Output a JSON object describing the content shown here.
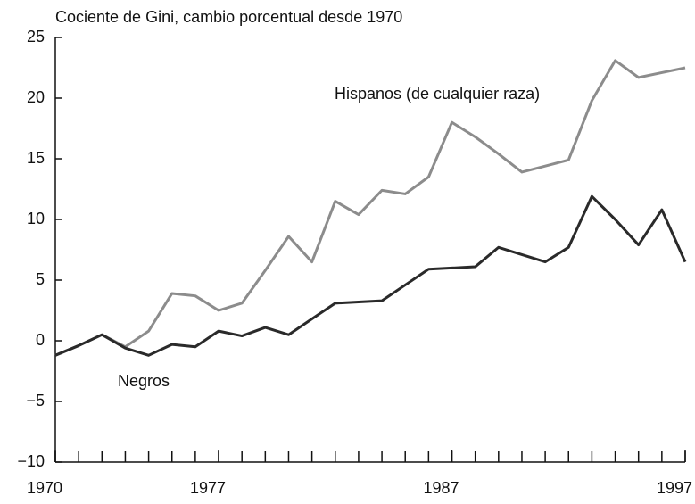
{
  "chart_data": {
    "type": "line",
    "title": "Cociente de Gini, cambio porcentual desde 1970",
    "x": [
      1970,
      1971,
      1972,
      1973,
      1974,
      1975,
      1976,
      1977,
      1978,
      1979,
      1980,
      1981,
      1982,
      1983,
      1984,
      1985,
      1986,
      1987,
      1988,
      1989,
      1990,
      1991,
      1992,
      1993,
      1994,
      1995,
      1996,
      1997
    ],
    "series": [
      {
        "name": "Hispanos (de cualquier raza)",
        "color": "#8c8c8c",
        "values": [
          -1.2,
          -0.4,
          0.5,
          -0.5,
          0.8,
          3.9,
          3.7,
          2.5,
          3.1,
          5.8,
          8.6,
          6.5,
          11.5,
          10.4,
          12.4,
          12.1,
          13.5,
          18.0,
          16.8,
          15.4,
          13.9,
          14.4,
          14.9,
          19.8,
          23.1,
          21.7,
          22.1,
          22.5
        ]
      },
      {
        "name": "Negros",
        "color": "#2a2a2a",
        "values": [
          -1.2,
          -0.4,
          0.5,
          -0.6,
          -1.2,
          -0.3,
          -0.5,
          0.8,
          0.4,
          1.1,
          0.5,
          1.8,
          3.1,
          3.2,
          3.3,
          4.6,
          5.9,
          6.0,
          6.1,
          7.7,
          7.1,
          6.5,
          7.7,
          11.9,
          10.0,
          7.9,
          10.8,
          6.5
        ]
      }
    ],
    "xlim": [
      1970,
      1997
    ],
    "xticks": [
      1970,
      1977,
      1987,
      1997
    ],
    "ylim": [
      -10,
      25
    ],
    "yticks": [
      {
        "value": -10,
        "label": "−10"
      },
      {
        "value": -5,
        "label": "−5"
      },
      0,
      5,
      10,
      15,
      20,
      25
    ],
    "grid": false
  }
}
